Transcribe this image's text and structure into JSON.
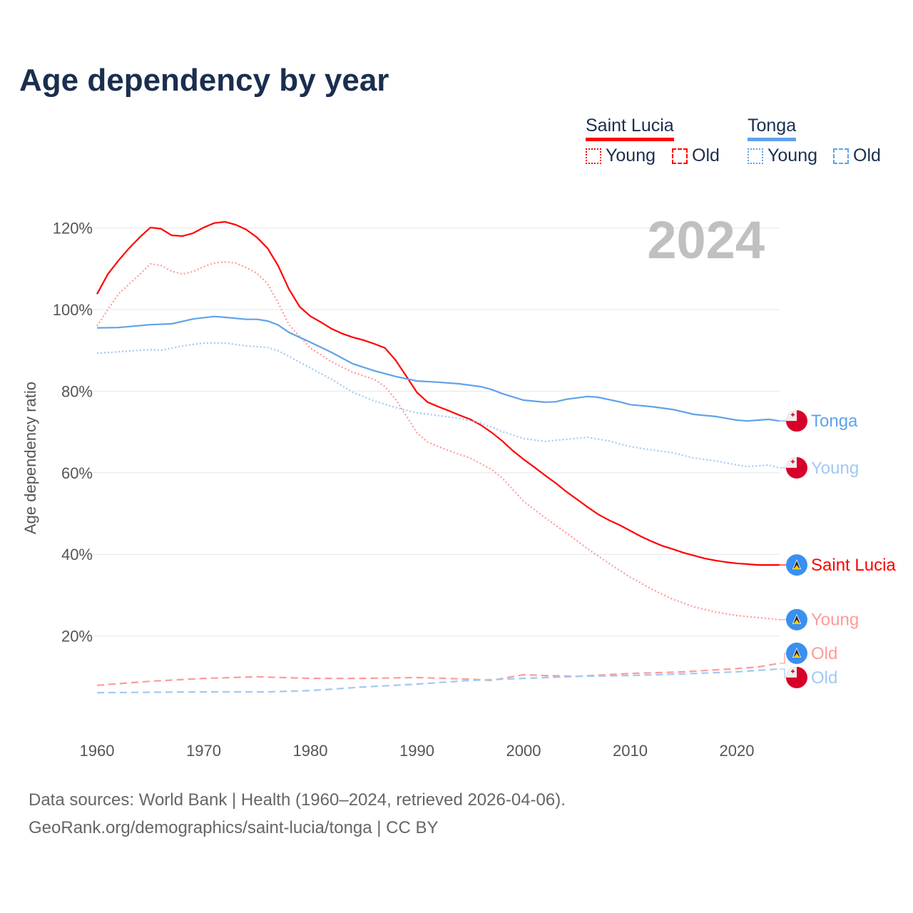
{
  "title": "Age dependency by year",
  "legend": {
    "countries": [
      {
        "name": "Saint Lucia",
        "color": "#ff0000",
        "young_label": "Young",
        "old_label": "Old"
      },
      {
        "name": "Tonga",
        "color": "#5fa2ea",
        "young_label": "Young",
        "old_label": "Old"
      }
    ]
  },
  "year_watermark": "2024",
  "footer": {
    "line1": "Data sources: World Bank | Health (1960–2024, retrieved 2026-04-06).",
    "line2": "GeoRank.org/demographics/saint-lucia/tonga | CC BY"
  },
  "chart_data": {
    "type": "line",
    "title": "Age dependency by year",
    "xlabel": "",
    "ylabel": "Age dependency ratio",
    "xlim": [
      1960,
      2024
    ],
    "ylim": [
      0,
      130
    ],
    "x_ticks": [
      "1960",
      "1970",
      "1980",
      "1990",
      "2000",
      "2010",
      "2020"
    ],
    "y_ticks": [
      "20%",
      "40%",
      "60%",
      "80%",
      "100%",
      "120%"
    ],
    "grid": true,
    "series": [
      {
        "name": "Saint Lucia",
        "label": "Saint Lucia",
        "color": "#ff0000",
        "style": "solid",
        "flag": "saint-lucia",
        "x": [
          1960,
          1961,
          1962,
          1963,
          1964,
          1965,
          1966,
          1967,
          1968,
          1969,
          1970,
          1971,
          1972,
          1973,
          1974,
          1975,
          1976,
          1977,
          1978,
          1979,
          1980,
          1981,
          1982,
          1983,
          1984,
          1985,
          1986,
          1987,
          1988,
          1989,
          1990,
          1991,
          1992,
          1993,
          1994,
          1995,
          1996,
          1997,
          1998,
          1999,
          2000,
          2001,
          2002,
          2003,
          2004,
          2005,
          2006,
          2007,
          2008,
          2009,
          2010,
          2011,
          2012,
          2013,
          2014,
          2015,
          2016,
          2017,
          2018,
          2019,
          2020,
          2021,
          2022,
          2023,
          2024
        ],
        "y": [
          103.8,
          108.6,
          112,
          115,
          117.7,
          120.1,
          119.8,
          118.2,
          118,
          118.7,
          120.1,
          121.2,
          121.5,
          120.8,
          119.6,
          117.7,
          115,
          110.7,
          105,
          100.7,
          98.4,
          96.9,
          95.3,
          94.1,
          93.2,
          92.5,
          91.6,
          90.6,
          87.6,
          83.7,
          79.7,
          77.3,
          76.2,
          75.2,
          74.1,
          73.1,
          71.7,
          69.9,
          67.8,
          65.4,
          63.3,
          61.4,
          59.4,
          57.5,
          55.4,
          53.5,
          51.6,
          49.8,
          48.4,
          47.2,
          45.8,
          44.4,
          43.2,
          42.1,
          41.3,
          40.4,
          39.7,
          39,
          38.5,
          38.1,
          37.8,
          37.6,
          37.4,
          37.4,
          37.4
        ]
      },
      {
        "name": "Saint Lucia Young",
        "label": "Young",
        "color": "#ff9a9a",
        "style": "dotted",
        "flag": "saint-lucia",
        "x": [
          1960,
          1962,
          1964,
          1965,
          1966,
          1967,
          1968,
          1969,
          1970,
          1971,
          1972,
          1973,
          1974,
          1975,
          1976,
          1977,
          1978,
          1980,
          1982,
          1984,
          1986,
          1987,
          1988,
          1989,
          1990,
          1991,
          1993,
          1995,
          1997,
          1998,
          2000,
          2002,
          2004,
          2006,
          2008,
          2010,
          2012,
          2014,
          2016,
          2018,
          2020,
          2022,
          2024
        ],
        "y": [
          96,
          103.8,
          108.6,
          111.2,
          110.8,
          109.4,
          108.7,
          109.3,
          110.5,
          111.4,
          111.7,
          111.4,
          110.3,
          108.9,
          106.3,
          101.6,
          96.3,
          90.6,
          87.2,
          84.6,
          82.9,
          81.1,
          78,
          74,
          69.8,
          67.5,
          65.4,
          63.6,
          60.8,
          58.7,
          53,
          49,
          45.3,
          41.4,
          37.8,
          34.4,
          31.5,
          29,
          27.1,
          25.9,
          25,
          24.5,
          24
        ]
      },
      {
        "name": "Saint Lucia Old",
        "label": "Old",
        "color": "#ff9a9a",
        "style": "dashed",
        "flag": "saint-lucia",
        "x": [
          1960,
          1965,
          1970,
          1975,
          1980,
          1985,
          1990,
          1995,
          1997,
          2000,
          2002,
          2005,
          2010,
          2015,
          2020,
          2022,
          2024
        ],
        "y": [
          7.9,
          8.9,
          9.6,
          10,
          9.6,
          9.6,
          9.8,
          9.4,
          9.1,
          10.5,
          10.3,
          10.1,
          10.8,
          11.2,
          12,
          12.4,
          13.3
        ]
      },
      {
        "name": "Tonga",
        "label": "Tonga",
        "color": "#5fa2ea",
        "style": "solid",
        "flag": "tonga",
        "x": [
          1960,
          1962,
          1965,
          1967,
          1969,
          1971,
          1972,
          1974,
          1975,
          1976,
          1977,
          1978,
          1980,
          1982,
          1984,
          1986,
          1988,
          1990,
          1992,
          1994,
          1996,
          1997,
          1998,
          2000,
          2002,
          2003,
          2004,
          2006,
          2007,
          2009,
          2010,
          2012,
          2014,
          2016,
          2018,
          2020,
          2021,
          2022,
          2023,
          2024
        ],
        "y": [
          95.5,
          95.6,
          96.3,
          96.5,
          97.7,
          98.3,
          98.1,
          97.6,
          97.6,
          97.2,
          96.2,
          94.4,
          92,
          89.5,
          86.7,
          85,
          83.6,
          82.5,
          82.2,
          81.8,
          81.1,
          80.4,
          79.4,
          77.8,
          77.3,
          77.4,
          78,
          78.7,
          78.5,
          77.4,
          76.7,
          76.2,
          75.5,
          74.3,
          73.8,
          72.9,
          72.7,
          72.9,
          73.1,
          72.7
        ]
      },
      {
        "name": "Tonga Young",
        "label": "Young",
        "color": "#a3c8f2",
        "style": "dotted",
        "flag": "tonga",
        "x": [
          1960,
          1965,
          1966,
          1968,
          1970,
          1972,
          1974,
          1976,
          1977,
          1978,
          1980,
          1982,
          1984,
          1986,
          1988,
          1990,
          1992,
          1994,
          1996,
          1998,
          2000,
          2002,
          2004,
          2006,
          2008,
          2010,
          2012,
          2014,
          2016,
          2018,
          2020,
          2021,
          2023,
          2024
        ],
        "y": [
          89.3,
          90.2,
          90,
          91.1,
          91.8,
          91.8,
          91.1,
          90.7,
          89.9,
          88.5,
          85.7,
          82.9,
          79.7,
          77.6,
          76,
          74.7,
          74,
          73.3,
          72.2,
          70.1,
          68.4,
          67.7,
          68.2,
          68.7,
          67.8,
          66.4,
          65.6,
          64.9,
          63.6,
          62.9,
          61.9,
          61.5,
          61.9,
          61.2
        ]
      },
      {
        "name": "Tonga Old",
        "label": "Old",
        "color": "#a3c8f2",
        "style": "dashed",
        "flag": "tonga",
        "x": [
          1960,
          1970,
          1976,
          1980,
          1985,
          1990,
          1995,
          2000,
          2005,
          2010,
          2015,
          2020,
          2024
        ],
        "y": [
          6.1,
          6.3,
          6.3,
          6.6,
          7.5,
          8.2,
          9.1,
          9.6,
          10.1,
          10.3,
          10.7,
          11.2,
          11.9
        ]
      }
    ]
  }
}
